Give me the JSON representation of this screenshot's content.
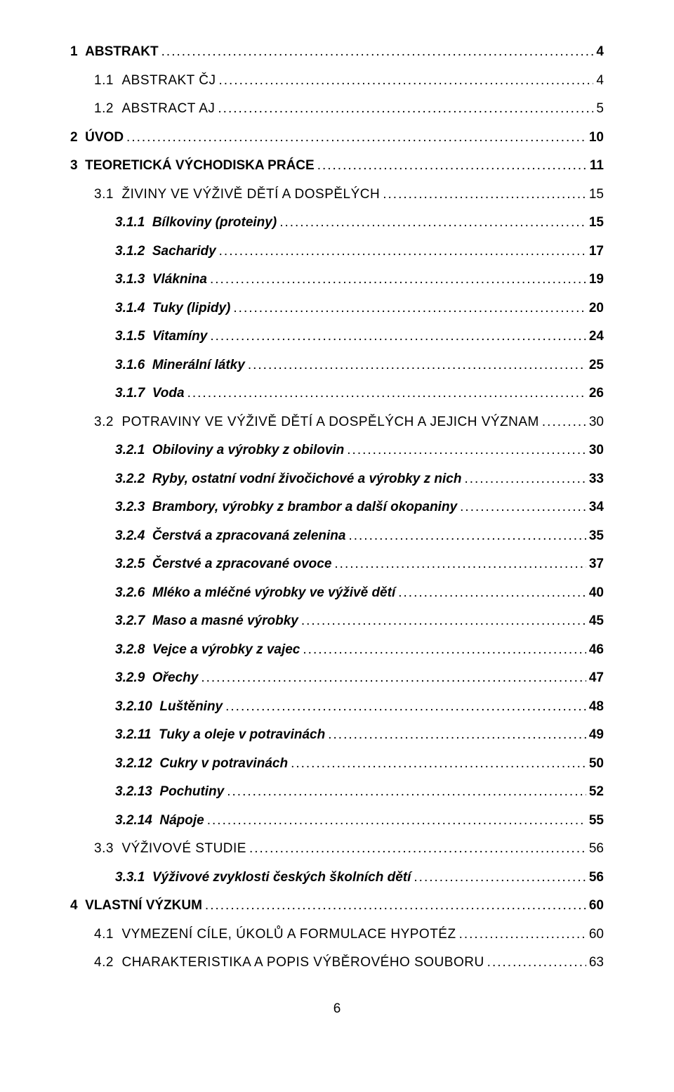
{
  "page_number": "6",
  "toc": [
    {
      "num": "1",
      "title": "ABSTRAKT",
      "page": "4",
      "level": 0,
      "bold": true,
      "italic": false,
      "smallcaps": false
    },
    {
      "num": "1.1",
      "title": "ABSTRAKT ČJ",
      "page": "4",
      "level": 1,
      "bold": false,
      "italic": false,
      "smallcaps": true
    },
    {
      "num": "1.2",
      "title": "ABSTRACT AJ",
      "page": "5",
      "level": 1,
      "bold": false,
      "italic": false,
      "smallcaps": true
    },
    {
      "num": "2",
      "title": "ÚVOD",
      "page": "10",
      "level": 0,
      "bold": true,
      "italic": false,
      "smallcaps": false
    },
    {
      "num": "3",
      "title": "TEORETICKÁ VÝCHODISKA PRÁCE",
      "page": "11",
      "level": 0,
      "bold": true,
      "italic": false,
      "smallcaps": false
    },
    {
      "num": "3.1",
      "title": "ŽIVINY VE VÝŽIVĚ DĚTÍ A DOSPĚLÝCH",
      "page": "15",
      "level": 1,
      "bold": false,
      "italic": false,
      "smallcaps": true
    },
    {
      "num": "3.1.1",
      "title": "Bílkoviny (proteiny)",
      "page": "15",
      "level": 2,
      "bold": true,
      "italic": true,
      "smallcaps": false
    },
    {
      "num": "3.1.2",
      "title": "Sacharidy",
      "page": "17",
      "level": 2,
      "bold": true,
      "italic": true,
      "smallcaps": false
    },
    {
      "num": "3.1.3",
      "title": "Vláknina",
      "page": "19",
      "level": 2,
      "bold": true,
      "italic": true,
      "smallcaps": false
    },
    {
      "num": "3.1.4",
      "title": "Tuky (lipidy)",
      "page": "20",
      "level": 2,
      "bold": true,
      "italic": true,
      "smallcaps": false
    },
    {
      "num": "3.1.5",
      "title": "Vitamíny",
      "page": "24",
      "level": 2,
      "bold": true,
      "italic": true,
      "smallcaps": false
    },
    {
      "num": "3.1.6",
      "title": "Minerální látky",
      "page": "25",
      "level": 2,
      "bold": true,
      "italic": true,
      "smallcaps": false
    },
    {
      "num": "3.1.7",
      "title": "Voda",
      "page": "26",
      "level": 2,
      "bold": true,
      "italic": true,
      "smallcaps": false
    },
    {
      "num": "3.2",
      "title": "POTRAVINY VE VÝŽIVĚ DĚTÍ A DOSPĚLÝCH A JEJICH VÝZNAM",
      "page": "30",
      "level": 1,
      "bold": false,
      "italic": false,
      "smallcaps": true
    },
    {
      "num": "3.2.1",
      "title": "Obiloviny a výrobky z obilovin",
      "page": "30",
      "level": 2,
      "bold": true,
      "italic": true,
      "smallcaps": false
    },
    {
      "num": "3.2.2",
      "title": "Ryby, ostatní vodní živočichové a výrobky z nich",
      "page": "33",
      "level": 2,
      "bold": true,
      "italic": true,
      "smallcaps": false
    },
    {
      "num": "3.2.3",
      "title": "Brambory, výrobky z brambor a další okopaniny",
      "page": "34",
      "level": 2,
      "bold": true,
      "italic": true,
      "smallcaps": false
    },
    {
      "num": "3.2.4",
      "title": "Čerstvá a zpracovaná zelenina",
      "page": "35",
      "level": 2,
      "bold": true,
      "italic": true,
      "smallcaps": false
    },
    {
      "num": "3.2.5",
      "title": "Čerstvé a zpracované ovoce",
      "page": "37",
      "level": 2,
      "bold": true,
      "italic": true,
      "smallcaps": false
    },
    {
      "num": "3.2.6",
      "title": "Mléko a mléčné výrobky ve výživě dětí",
      "page": "40",
      "level": 2,
      "bold": true,
      "italic": true,
      "smallcaps": false
    },
    {
      "num": "3.2.7",
      "title": "Maso a masné výrobky",
      "page": "45",
      "level": 2,
      "bold": true,
      "italic": true,
      "smallcaps": false
    },
    {
      "num": "3.2.8",
      "title": "Vejce a výrobky z vajec",
      "page": "46",
      "level": 2,
      "bold": true,
      "italic": true,
      "smallcaps": false
    },
    {
      "num": "3.2.9",
      "title": "Ořechy",
      "page": "47",
      "level": 2,
      "bold": true,
      "italic": true,
      "smallcaps": false
    },
    {
      "num": "3.2.10",
      "title": "Luštěniny",
      "page": "48",
      "level": 2,
      "bold": true,
      "italic": true,
      "smallcaps": false
    },
    {
      "num": "3.2.11",
      "title": "Tuky a oleje v potravinách",
      "page": "49",
      "level": 2,
      "bold": true,
      "italic": true,
      "smallcaps": false
    },
    {
      "num": "3.2.12",
      "title": "Cukry v potravinách",
      "page": "50",
      "level": 2,
      "bold": true,
      "italic": true,
      "smallcaps": false
    },
    {
      "num": "3.2.13",
      "title": "Pochutiny",
      "page": "52",
      "level": 2,
      "bold": true,
      "italic": true,
      "smallcaps": false
    },
    {
      "num": "3.2.14",
      "title": "Nápoje",
      "page": "55",
      "level": 2,
      "bold": true,
      "italic": true,
      "smallcaps": false
    },
    {
      "num": "3.3",
      "title": "VÝŽIVOVÉ STUDIE",
      "page": "56",
      "level": 1,
      "bold": false,
      "italic": false,
      "smallcaps": true
    },
    {
      "num": "3.3.1",
      "title": "Výživové zvyklosti českých školních dětí",
      "page": "56",
      "level": 2,
      "bold": true,
      "italic": true,
      "smallcaps": false
    },
    {
      "num": "4",
      "title": "VLASTNÍ VÝZKUM",
      "page": "60",
      "level": 0,
      "bold": true,
      "italic": false,
      "smallcaps": false
    },
    {
      "num": "4.1",
      "title": "VYMEZENÍ CÍLE, ÚKOLŮ A FORMULACE HYPOTÉZ",
      "page": "60",
      "level": 1,
      "bold": false,
      "italic": false,
      "smallcaps": true
    },
    {
      "num": "4.2",
      "title": "CHARAKTERISTIKA A POPIS VÝBĚROVÉHO SOUBORU",
      "page": "63",
      "level": 1,
      "bold": false,
      "italic": false,
      "smallcaps": true
    }
  ]
}
